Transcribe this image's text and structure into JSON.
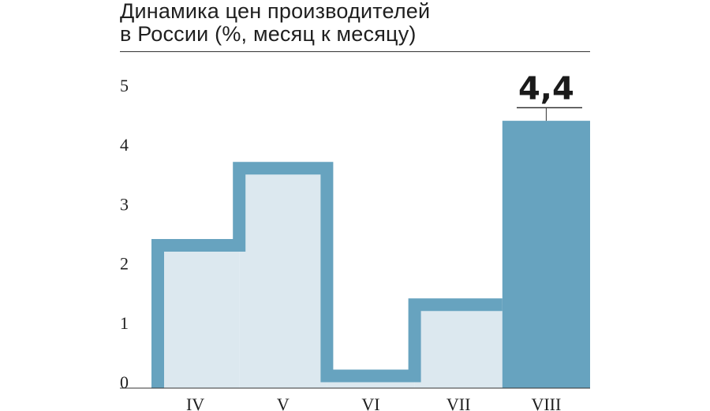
{
  "title_lines": [
    "Динамика цен производителей",
    "в России (%, месяц к месяцу)"
  ],
  "chart_data": {
    "type": "bar",
    "title": "Динамика цен производителей в России (%, месяц к месяцу)",
    "categories": [
      "IV",
      "V",
      "VI",
      "VII",
      "VIII"
    ],
    "values": [
      2.3,
      3.6,
      0.1,
      1.3,
      4.4
    ],
    "ylim": [
      0,
      5
    ],
    "yticks": [
      "0",
      "1",
      "2",
      "3",
      "4",
      "5"
    ],
    "highlight_label": "4,4",
    "highlight_category": "VIII",
    "grid": false,
    "colors": {
      "outline": "#67a3bf",
      "fill_light": "#dce8ef",
      "highlight": "#67a3bf",
      "rule": "#333333"
    }
  }
}
